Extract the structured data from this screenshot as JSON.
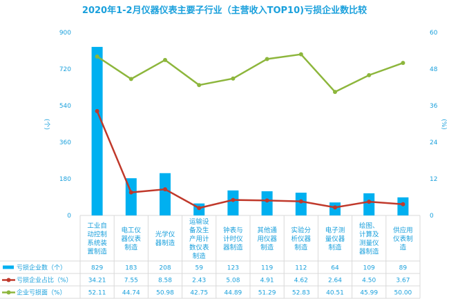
{
  "chart_data": {
    "type": "bar+line",
    "title": "2020年1-2月仪器仪表主要子行业（主营收入TOP10)亏损企业数比较",
    "categories": [
      "工业自动控制系统装置制造",
      "电工仪器仪表制造",
      "光学仪器制造",
      "运输设备及生产用计数仪表制造",
      "钟表与计时仪器制造",
      "其他通用仪器制造",
      "实验分析仪器制造",
      "电子测量仪器制造",
      "绘图、计算及测量仪器制造",
      "供应用仪表制造"
    ],
    "category_lines": [
      [
        "工业自",
        "动控制",
        "系统装",
        "置制造"
      ],
      [
        "电工仪",
        "器仪表",
        "制造"
      ],
      [
        "光学仪",
        "器制造"
      ],
      [
        "运输设",
        "备及生",
        "产用计",
        "数仪表",
        "制造"
      ],
      [
        "钟表与",
        "计时仪",
        "器制造"
      ],
      [
        "其他通",
        "用仪器",
        "制造"
      ],
      [
        "实验分",
        "析仪器",
        "制造"
      ],
      [
        "电子测",
        "量仪器",
        "制造"
      ],
      [
        "绘图、",
        "计算及",
        "测量仪",
        "器制造"
      ],
      [
        "供应用",
        "仪表制",
        "造"
      ]
    ],
    "y_left": {
      "label": "(个)",
      "range": [
        0,
        900
      ],
      "ticks": [
        "0",
        "180",
        "360",
        "540",
        "720",
        "900"
      ]
    },
    "y_right": {
      "label": "(%)",
      "range": [
        0,
        60
      ],
      "ticks": [
        "0",
        "12",
        "24",
        "36",
        "48",
        "60"
      ]
    },
    "series": [
      {
        "name": "亏损企业数（个）",
        "type": "bar",
        "axis": "left",
        "color": "#00b0f0",
        "values": [
          829,
          183,
          208,
          59,
          123,
          119,
          112,
          64,
          109,
          89
        ],
        "labels": [
          "829",
          "183",
          "208",
          "59",
          "123",
          "119",
          "112",
          "64",
          "109",
          "89"
        ]
      },
      {
        "name": "亏损企业占比（%）",
        "type": "line",
        "axis": "right",
        "color": "#c0392b",
        "values": [
          34.21,
          7.55,
          8.58,
          2.43,
          5.08,
          4.91,
          4.62,
          2.64,
          4.5,
          3.67
        ],
        "labels": [
          "34.21",
          "7.55",
          "8.58",
          "2.43",
          "5.08",
          "4.91",
          "4.62",
          "2.64",
          "4.50",
          "3.67"
        ]
      },
      {
        "name": "企业亏损面（%）",
        "type": "line",
        "axis": "right",
        "color": "#8db63c",
        "values": [
          52.11,
          44.74,
          50.98,
          42.75,
          44.89,
          51.29,
          52.83,
          40.51,
          45.99,
          50.0
        ],
        "labels": [
          "52.11",
          "44.74",
          "50.98",
          "42.75",
          "44.89",
          "51.29",
          "52.83",
          "40.51",
          "45.99",
          "50.00"
        ]
      }
    ],
    "legend": "data-table"
  }
}
